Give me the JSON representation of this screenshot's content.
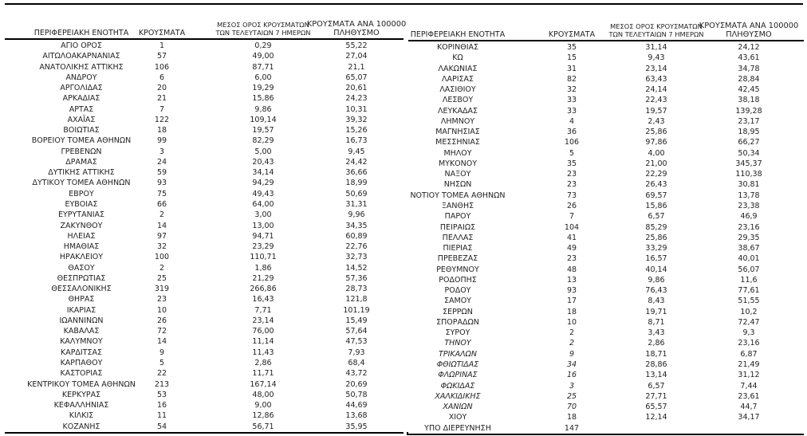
{
  "page": {
    "background": "#ffffff",
    "text_color": "#1f1f1f",
    "line_color": "#000000"
  },
  "headers": {
    "col1": "ΠΕΡΙΦΕΡΕΙΑΚΗ ΕΝΟΤΗΤΑ",
    "col2": "ΚΡΟΥΣΜΑΤΑ",
    "col3_line1": "ΜΕΣΟΣ ΟΡΟΣ ΚΡΟΥΣΜΑΤΩΝ",
    "col3_line2": "ΤΩΝ ΤΕΛΕΥΤΑΙΩΝ 7 ΗΜΕΡΩΝ",
    "col4_line1": "ΚΡΟΥΣΜΑΤΑ ΑΝΑ 100000",
    "col4_line2": "ΠΛΗΘΥΣΜΟ"
  },
  "left_table": {
    "rows": [
      {
        "name": "ΑΓΙΟ ΟΡΟΣ",
        "cases": "1",
        "avg7": "0,29",
        "per100k": "55,22"
      },
      {
        "name": "ΑΙΤΩΛΟΑΚΑΡΝΑΝΙΑΣ",
        "cases": "57",
        "avg7": "49,00",
        "per100k": "27,04"
      },
      {
        "name": "ΑΝΑΤΟΛΙΚΗΣ ΑΤΤΙΚΗΣ",
        "cases": "106",
        "avg7": "87,71",
        "per100k": "21,1"
      },
      {
        "name": "ΑΝΔΡΟΥ",
        "cases": "6",
        "avg7": "6,00",
        "per100k": "65,07"
      },
      {
        "name": "ΑΡΓΟΛΙΔΑΣ",
        "cases": "20",
        "avg7": "19,29",
        "per100k": "20,61"
      },
      {
        "name": "ΑΡΚΑΔΙΑΣ",
        "cases": "21",
        "avg7": "15,86",
        "per100k": "24,23"
      },
      {
        "name": "ΑΡΤΑΣ",
        "cases": "7",
        "avg7": "9,86",
        "per100k": "10,31"
      },
      {
        "name": "ΑΧΑΪΑΣ",
        "cases": "122",
        "avg7": "109,14",
        "per100k": "39,32"
      },
      {
        "name": "ΒΟΙΩΤΙΑΣ",
        "cases": "18",
        "avg7": "19,57",
        "per100k": "15,26"
      },
      {
        "name": "ΒΟΡΕΙΟΥ ΤΟΜΕΑ ΑΘΗΝΩΝ",
        "cases": "99",
        "avg7": "82,29",
        "per100k": "16,73"
      },
      {
        "name": "ΓΡΕΒΕΝΩΝ",
        "cases": "3",
        "avg7": "5,00",
        "per100k": "9,45"
      },
      {
        "name": "ΔΡΑΜΑΣ",
        "cases": "24",
        "avg7": "20,43",
        "per100k": "24,42"
      },
      {
        "name": "ΔΥΤΙΚΗΣ ΑΤΤΙΚΗΣ",
        "cases": "59",
        "avg7": "34,14",
        "per100k": "36,66"
      },
      {
        "name": "ΔΥΤΙΚΟΥ ΤΟΜΕΑ ΑΘΗΝΩΝ",
        "cases": "93",
        "avg7": "94,29",
        "per100k": "18,99"
      },
      {
        "name": "ΕΒΡΟΥ",
        "cases": "75",
        "avg7": "49,43",
        "per100k": "50,69"
      },
      {
        "name": "ΕΥΒΟΙΑΣ",
        "cases": "66",
        "avg7": "64,00",
        "per100k": "31,31"
      },
      {
        "name": "ΕΥΡΥΤΑΝΙΑΣ",
        "cases": "2",
        "avg7": "3,00",
        "per100k": "9,96"
      },
      {
        "name": "ΖΑΚΥΝΘΟΥ",
        "cases": "14",
        "avg7": "13,00",
        "per100k": "34,35"
      },
      {
        "name": "ΗΛΕΙΑΣ",
        "cases": "97",
        "avg7": "94,71",
        "per100k": "60,89"
      },
      {
        "name": "ΗΜΑΘΙΑΣ",
        "cases": "32",
        "avg7": "23,29",
        "per100k": "22,76"
      },
      {
        "name": "ΗΡΑΚΛΕΙΟΥ",
        "cases": "100",
        "avg7": "110,71",
        "per100k": "32,73"
      },
      {
        "name": "ΘΑΣΟΥ",
        "cases": "2",
        "avg7": "1,86",
        "per100k": "14,52"
      },
      {
        "name": "ΘΕΣΠΡΩΤΙΑΣ",
        "cases": "25",
        "avg7": "21,29",
        "per100k": "57,36"
      },
      {
        "name": "ΘΕΣΣΑΛΟΝΙΚΗΣ",
        "cases": "319",
        "avg7": "266,86",
        "per100k": "28,73"
      },
      {
        "name": "ΘΗΡΑΣ",
        "cases": "23",
        "avg7": "16,43",
        "per100k": "121,8"
      },
      {
        "name": "ΙΚΑΡΙΑΣ",
        "cases": "10",
        "avg7": "7,71",
        "per100k": "101,19"
      },
      {
        "name": "ΙΩΑΝΝΙΝΩΝ",
        "cases": "26",
        "avg7": "23,14",
        "per100k": "15,49"
      },
      {
        "name": "ΚΑΒΑΛΑΣ",
        "cases": "72",
        "avg7": "76,00",
        "per100k": "57,64"
      },
      {
        "name": "ΚΑΛΥΜΝΟΥ",
        "cases": "14",
        "avg7": "11,14",
        "per100k": "47,53"
      },
      {
        "name": "ΚΑΡΔΙΤΣΑΣ",
        "cases": "9",
        "avg7": "11,43",
        "per100k": "7,93"
      },
      {
        "name": "ΚΑΡΠΑΘΟΥ",
        "cases": "5",
        "avg7": "2,86",
        "per100k": "68,4"
      },
      {
        "name": "ΚΑΣΤΟΡΙΑΣ",
        "cases": "22",
        "avg7": "11,71",
        "per100k": "43,72"
      },
      {
        "name": "ΚΕΝΤΡΙΚΟΥ ΤΟΜΕΑ ΑΘΗΝΩΝ",
        "cases": "213",
        "avg7": "167,14",
        "per100k": "20,69"
      },
      {
        "name": "ΚΕΡΚΥΡΑΣ",
        "cases": "53",
        "avg7": "48,00",
        "per100k": "50,78"
      },
      {
        "name": "ΚΕΦΑΛΛΗΝΙΑΣ",
        "cases": "16",
        "avg7": "9,00",
        "per100k": "44,69"
      },
      {
        "name": "ΚΙΛΚΙΣ",
        "cases": "11",
        "avg7": "12,86",
        "per100k": "13,68"
      },
      {
        "name": "ΚΟΖΑΝΗΣ",
        "cases": "54",
        "avg7": "56,71",
        "per100k": "35,95"
      }
    ]
  },
  "right_table": {
    "rows": [
      {
        "name": "ΚΟΡΙΝΘΙΑΣ",
        "cases": "35",
        "avg7": "31,14",
        "per100k": "24,12"
      },
      {
        "name": "ΚΩ",
        "cases": "15",
        "avg7": "9,43",
        "per100k": "43,61"
      },
      {
        "name": "ΛΑΚΩΝΙΑΣ",
        "cases": "31",
        "avg7": "23,14",
        "per100k": "34,78"
      },
      {
        "name": "ΛΑΡΙΣΑΣ",
        "cases": "82",
        "avg7": "63,43",
        "per100k": "28,84"
      },
      {
        "name": "ΛΑΣΙΘΙΟΥ",
        "cases": "32",
        "avg7": "24,14",
        "per100k": "42,45"
      },
      {
        "name": "ΛΕΣΒΟΥ",
        "cases": "33",
        "avg7": "22,43",
        "per100k": "38,18"
      },
      {
        "name": "ΛΕΥΚΑΔΑΣ",
        "cases": "33",
        "avg7": "19,57",
        "per100k": "139,28"
      },
      {
        "name": "ΛΗΜΝΟΥ",
        "cases": "4",
        "avg7": "2,43",
        "per100k": "23,17"
      },
      {
        "name": "ΜΑΓΝΗΣΙΑΣ",
        "cases": "36",
        "avg7": "25,86",
        "per100k": "18,95"
      },
      {
        "name": "ΜΕΣΣΗΝΙΑΣ",
        "cases": "106",
        "avg7": "97,86",
        "per100k": "66,27"
      },
      {
        "name": "ΜΗΛΟΥ",
        "cases": "5",
        "avg7": "4,00",
        "per100k": "50,34"
      },
      {
        "name": "ΜΥΚΟΝΟΥ",
        "cases": "35",
        "avg7": "21,00",
        "per100k": "345,37"
      },
      {
        "name": "ΝΑΞΟΥ",
        "cases": "23",
        "avg7": "22,29",
        "per100k": "110,38"
      },
      {
        "name": "ΝΗΣΩΝ",
        "cases": "23",
        "avg7": "26,43",
        "per100k": "30,81"
      },
      {
        "name": "ΝΟΤΙΟΥ ΤΟΜΕΑ ΑΘΗΝΩΝ",
        "cases": "73",
        "avg7": "69,57",
        "per100k": "13,78"
      },
      {
        "name": "ΞΑΝΘΗΣ",
        "cases": "26",
        "avg7": "15,86",
        "per100k": "23,38"
      },
      {
        "name": "ΠΑΡΟΥ",
        "cases": "7",
        "avg7": "6,57",
        "per100k": "46,9"
      },
      {
        "name": "ΠΕΙΡΑΙΩΣ",
        "cases": "104",
        "avg7": "85,29",
        "per100k": "23,16"
      },
      {
        "name": "ΠΕΛΛΑΣ",
        "cases": "41",
        "avg7": "25,86",
        "per100k": "29,35"
      },
      {
        "name": "ΠΙΕΡΙΑΣ",
        "cases": "49",
        "avg7": "33,29",
        "per100k": "38,67"
      },
      {
        "name": "ΠΡΕΒΕΖΑΣ",
        "cases": "23",
        "avg7": "16,57",
        "per100k": "40,01"
      },
      {
        "name": "ΡΕΘΥΜΝΟΥ",
        "cases": "48",
        "avg7": "40,14",
        "per100k": "56,07"
      },
      {
        "name": "ΡΟΔΟΠΗΣ",
        "cases": "13",
        "avg7": "9,86",
        "per100k": "11,6"
      },
      {
        "name": "ΡΟΔΟΥ",
        "cases": "93",
        "avg7": "76,43",
        "per100k": "77,61"
      },
      {
        "name": "ΣΑΜΟΥ",
        "cases": "17",
        "avg7": "8,43",
        "per100k": "51,55"
      },
      {
        "name": "ΣΕΡΡΩΝ",
        "cases": "18",
        "avg7": "19,71",
        "per100k": "10,2"
      },
      {
        "name": "ΣΠΟΡΑΔΩΝ",
        "cases": "10",
        "avg7": "8,71",
        "per100k": "72,47"
      },
      {
        "name": "ΣΥΡΟΥ",
        "cases": "2",
        "avg7": "3,43",
        "per100k": "9,3"
      },
      {
        "name": "ΤΗΝΟΥ",
        "cases": "2",
        "avg7": "2,86",
        "per100k": "23,16",
        "italic": true
      },
      {
        "name": "ΤΡΙΚΑΛΩΝ",
        "cases": "9",
        "avg7": "18,71",
        "per100k": "6,87",
        "italic": true
      },
      {
        "name": "ΦΘΙΩΤΙΔΑΣ",
        "cases": "34",
        "avg7": "28,86",
        "per100k": "21,49",
        "italic": true
      },
      {
        "name": "ΦΛΩΡΙΝΑΣ",
        "cases": "16",
        "avg7": "13,14",
        "per100k": "31,12",
        "italic": true
      },
      {
        "name": "ΦΩΚΙΔΑΣ",
        "cases": "3",
        "avg7": "6,57",
        "per100k": "7,44",
        "italic": true
      },
      {
        "name": "ΧΑΛΚΙΔΙΚΗΣ",
        "cases": "25",
        "avg7": "27,71",
        "per100k": "23,61",
        "italic": true
      },
      {
        "name": "ΧΑΝΙΩΝ",
        "cases": "70",
        "avg7": "65,57",
        "per100k": "44,7",
        "italic": true
      },
      {
        "name": "ΧΙΟΥ",
        "cases": "18",
        "avg7": "12,14",
        "per100k": "34,17"
      },
      {
        "name": "ΥΠΟ ΔΙΕΡΕΥΝΗΣΗ",
        "cases": "147",
        "avg7": "",
        "per100k": ""
      }
    ]
  }
}
